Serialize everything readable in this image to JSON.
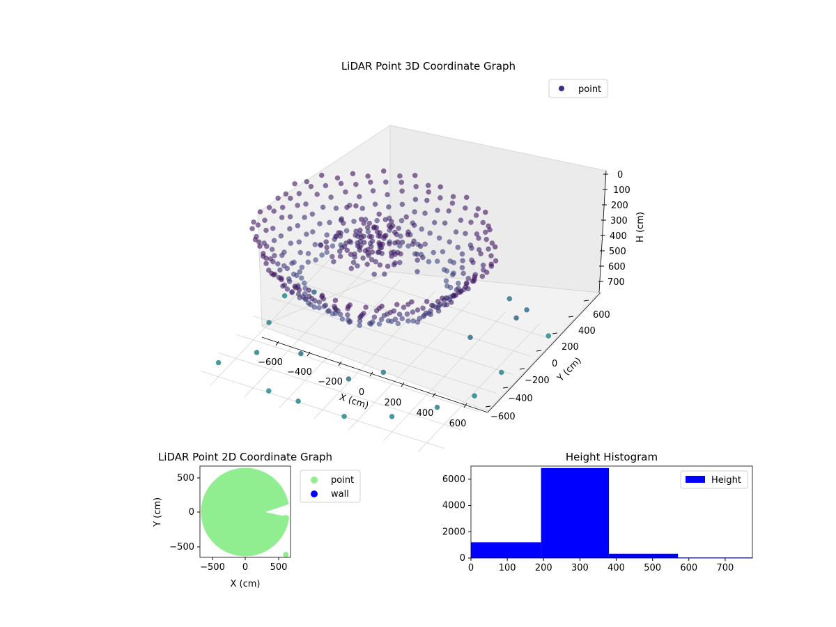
{
  "chart_data": [
    {
      "type": "scatter",
      "projection": "3d",
      "title": "LiDAR Point 3D Coordinate Graph",
      "xlabel": "X (cm)",
      "ylabel": "Y (cm)",
      "zlabel": "H (cm)",
      "xlim": [
        -700,
        700
      ],
      "ylim": [
        -700,
        700
      ],
      "zlim": [
        750,
        0
      ],
      "z_inverted": true,
      "xticks": [
        "−600",
        "−400",
        "−200",
        "0",
        "200",
        "400",
        "600"
      ],
      "yticks": [
        "−600",
        "−400",
        "−200",
        "0",
        "200",
        "400",
        "600"
      ],
      "zticks": [
        "0",
        "100",
        "200",
        "300",
        "400",
        "500",
        "600",
        "700"
      ],
      "legend": {
        "entries": [
          "point"
        ],
        "placement": "upper-right"
      },
      "colormap": "viridis (colored by height)",
      "marker_color": "#3b2f7f",
      "series": [
        {
          "name": "point",
          "description": "rings of points at radius ~200–650 cm, heights 180–420 cm; dense mass near origin at 200–300 cm; sparse outliers at heights 550–750 cm"
        }
      ],
      "sample_points": {
        "rings": [
          {
            "r": 620,
            "h": 200
          },
          {
            "r": 600,
            "h": 230
          },
          {
            "r": 560,
            "h": 260
          },
          {
            "r": 520,
            "h": 300
          },
          {
            "r": 470,
            "h": 340
          },
          {
            "r": 420,
            "h": 380
          },
          {
            "r": 380,
            "h": 410
          }
        ],
        "outliers": [
          {
            "x": -620,
            "y": 200,
            "h": 720
          },
          {
            "x": -560,
            "y": -100,
            "h": 700
          },
          {
            "x": -480,
            "y": -400,
            "h": 690
          },
          {
            "x": -300,
            "y": -620,
            "h": 730
          },
          {
            "x": -100,
            "y": -680,
            "h": 700
          },
          {
            "x": 150,
            "y": -650,
            "h": 720
          },
          {
            "x": 380,
            "y": -560,
            "h": 700
          },
          {
            "x": 550,
            "y": -380,
            "h": 690
          },
          {
            "x": 650,
            "y": -150,
            "h": 710
          },
          {
            "x": 680,
            "y": 100,
            "h": 700
          },
          {
            "x": 640,
            "y": 350,
            "h": 560
          },
          {
            "x": 600,
            "y": 550,
            "h": 620
          },
          {
            "x": 450,
            "y": 650,
            "h": 650
          },
          {
            "x": 700,
            "y": 600,
            "h": 740
          },
          {
            "x": -400,
            "y": 100,
            "h": 600
          },
          {
            "x": 200,
            "y": -300,
            "h": 650
          },
          {
            "x": -200,
            "y": -450,
            "h": 600
          },
          {
            "x": 500,
            "y": 100,
            "h": 580
          },
          {
            "x": -650,
            "y": -500,
            "h": 740
          },
          {
            "x": 100,
            "y": -500,
            "h": 620
          }
        ]
      }
    },
    {
      "type": "scatter",
      "title": "LiDAR Point 2D Coordinate Graph",
      "xlabel": "X (cm)",
      "ylabel": "Y (cm)",
      "xlim": [
        -680,
        680
      ],
      "ylim": [
        -680,
        680
      ],
      "xticks": [
        "−500",
        "0",
        "500"
      ],
      "yticks": [
        "500",
        "0",
        "−500"
      ],
      "legend": {
        "entries": [
          "point",
          "wall"
        ],
        "placement": "outside-right"
      },
      "series": [
        {
          "name": "point",
          "color": "#90ee90",
          "description": "filled disc of radius ~650 cm centered at origin with a notch on the right side near y=0"
        },
        {
          "name": "wall",
          "color": "#0000ff",
          "description": "no visible points"
        }
      ]
    },
    {
      "type": "bar",
      "subtype": "histogram",
      "title": "Height Histogram",
      "xlim": [
        0,
        775
      ],
      "ylim": [
        0,
        7000
      ],
      "xticks": [
        "0",
        "100",
        "200",
        "300",
        "400",
        "500",
        "600",
        "700"
      ],
      "yticks": [
        "0",
        "2000",
        "4000",
        "6000"
      ],
      "legend": {
        "entries": [
          "Height"
        ],
        "placement": "upper-right"
      },
      "color": "#0000ff",
      "bins": [
        {
          "start": 0,
          "end": 193,
          "count": 1200
        },
        {
          "start": 193,
          "end": 380,
          "count": 6850
        },
        {
          "start": 380,
          "end": 570,
          "count": 330
        },
        {
          "start": 570,
          "end": 775,
          "count": 40
        }
      ]
    }
  ]
}
